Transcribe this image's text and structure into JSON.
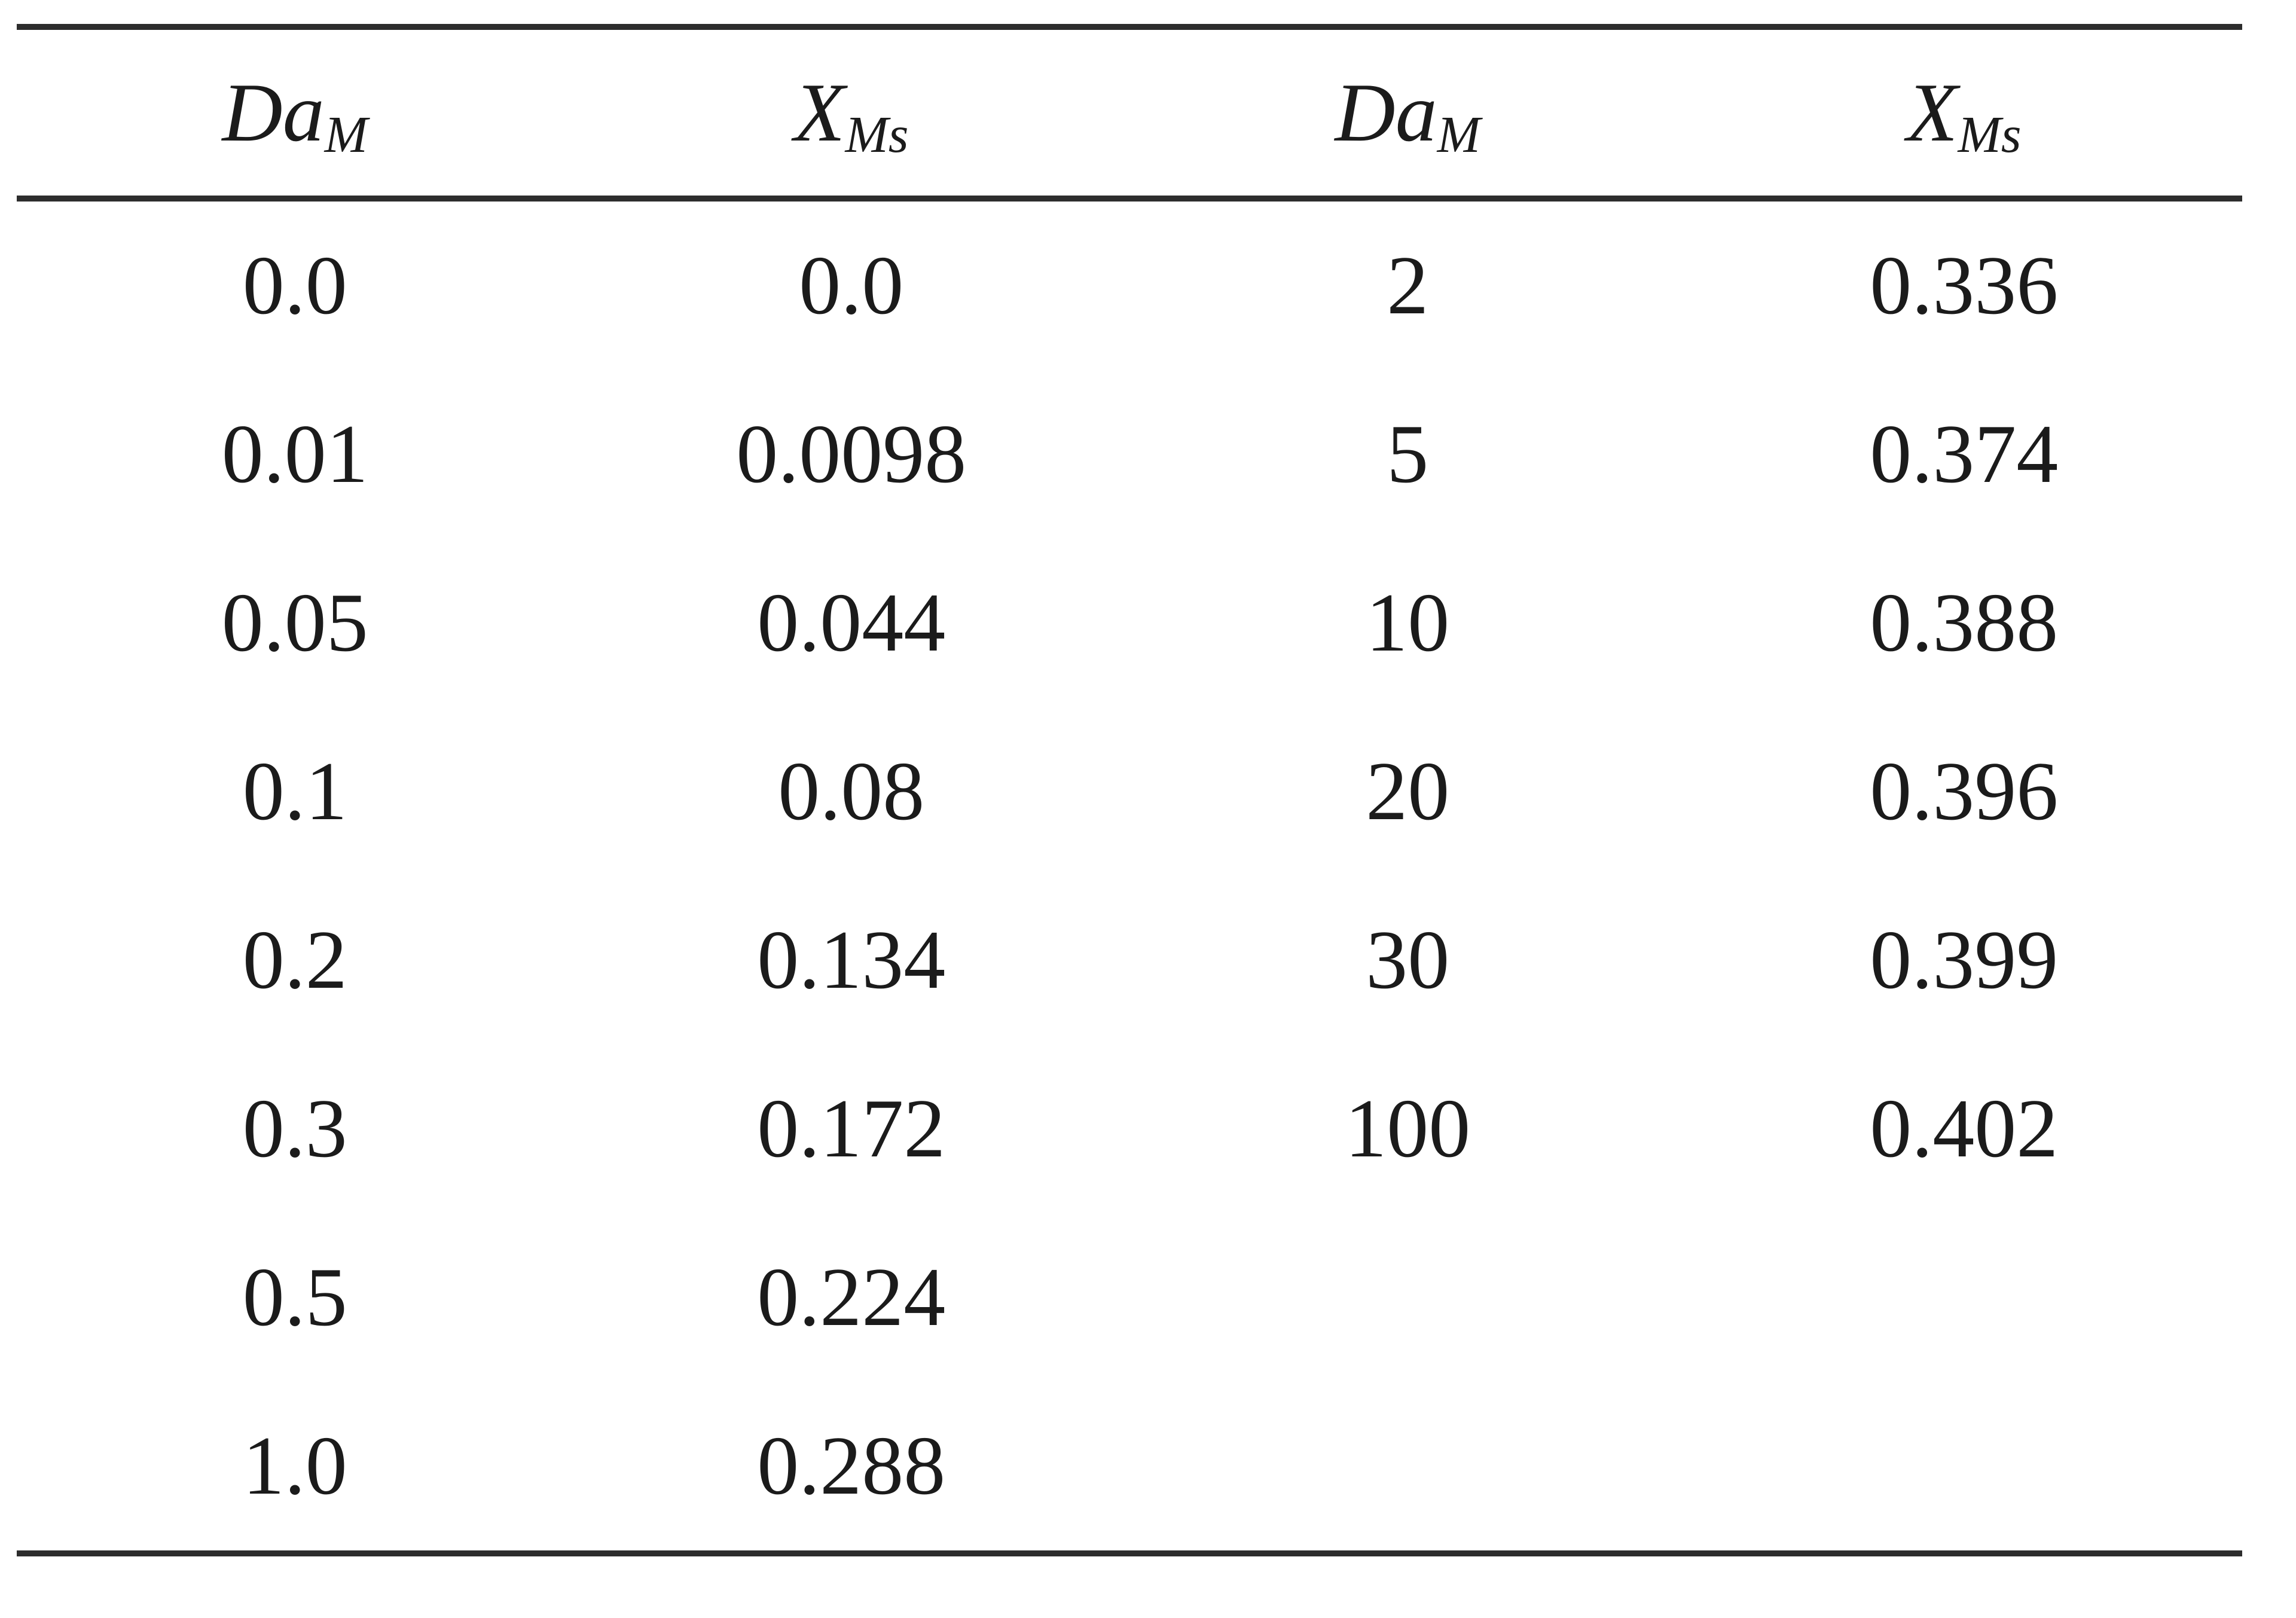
{
  "table": {
    "headers": [
      {
        "base": "Da",
        "sub": "M"
      },
      {
        "base": "X",
        "sub": "Ms"
      },
      {
        "base": "Da",
        "sub": "M"
      },
      {
        "base": "X",
        "sub": "Ms"
      }
    ],
    "rows": [
      [
        "0.0",
        "0.0",
        "2",
        "0.336"
      ],
      [
        "0.01",
        "0.0098",
        "5",
        "0.374"
      ],
      [
        "0.05",
        "0.044",
        "10",
        "0.388"
      ],
      [
        "0.1",
        "0.08",
        "20",
        "0.396"
      ],
      [
        "0.2",
        "0.134",
        "30",
        "0.399"
      ],
      [
        "0.3",
        "0.172",
        "100",
        "0.402"
      ],
      [
        "0.5",
        "0.224",
        "",
        ""
      ],
      [
        "1.0",
        "0.288",
        "",
        ""
      ]
    ]
  }
}
